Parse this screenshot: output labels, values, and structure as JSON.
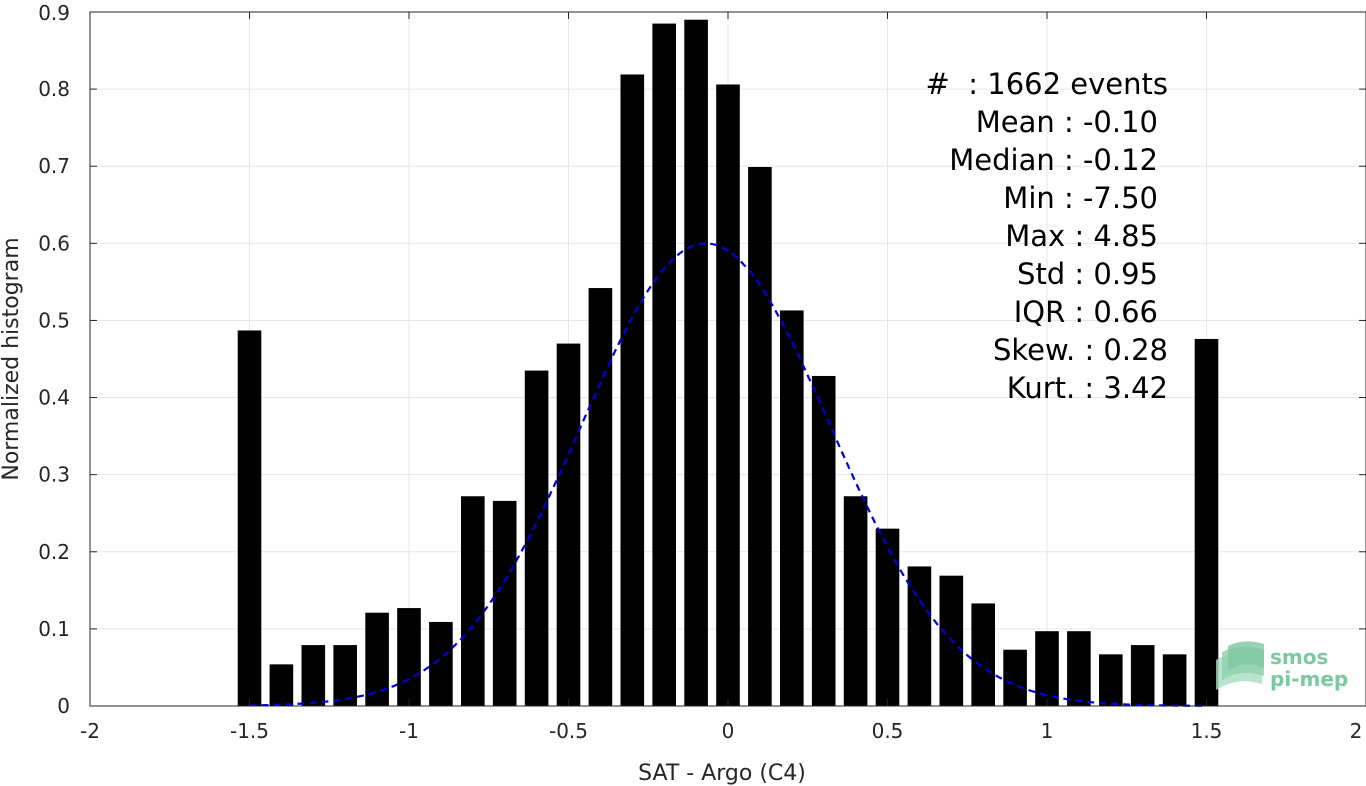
{
  "chart_data": {
    "type": "bar",
    "xlabel": "SAT - Argo (C4)",
    "ylabel": "Normalized histogram",
    "xlim": [
      -2,
      2
    ],
    "ylim": [
      0,
      0.9
    ],
    "x_ticks": [
      -2,
      -1.5,
      -1,
      -0.5,
      0,
      0.5,
      1,
      1.5,
      2
    ],
    "x_tick_labels": [
      "-2",
      "-1.5",
      "-1",
      "-0.5",
      "0",
      "0.5",
      "1",
      "1.5",
      "2"
    ],
    "y_ticks": [
      0,
      0.1,
      0.2,
      0.3,
      0.4,
      0.5,
      0.6,
      0.7,
      0.8,
      0.9
    ],
    "y_tick_labels": [
      "0",
      "0.1",
      "0.2",
      "0.3",
      "0.4",
      "0.5",
      "0.6",
      "0.7",
      "0.8",
      "0.9"
    ],
    "grid": true,
    "bar_color": "#000000",
    "bin_centers": [
      -1.5,
      -1.4,
      -1.3,
      -1.2,
      -1.1,
      -1.0,
      -0.9,
      -0.8,
      -0.7,
      -0.6,
      -0.5,
      -0.4,
      -0.3,
      -0.2,
      -0.1,
      0.0,
      0.1,
      0.2,
      0.3,
      0.4,
      0.5,
      0.6,
      0.7,
      0.8,
      0.9,
      1.0,
      1.1,
      1.2,
      1.3,
      1.4,
      1.5
    ],
    "values": [
      0.487,
      0.054,
      0.079,
      0.079,
      0.121,
      0.127,
      0.109,
      0.272,
      0.266,
      0.435,
      0.47,
      0.542,
      0.819,
      0.885,
      0.89,
      0.806,
      0.699,
      0.513,
      0.428,
      0.272,
      0.23,
      0.181,
      0.169,
      0.133,
      0.073,
      0.097,
      0.097,
      0.067,
      0.079,
      0.067,
      0.476
    ],
    "fit_curve": {
      "style": "dashed",
      "color": "#0000dd",
      "mean": -0.07,
      "std": 0.39,
      "peak": 0.6,
      "x_range": [
        -1.5,
        1.5
      ]
    },
    "annotation_lines": [
      "#  : 1662 events",
      "Mean : -0.10",
      "Median : -0.12",
      "Min : -7.50",
      "Max : 4.85",
      "Std : 0.95",
      "IQR : 0.66",
      "Skew. : 0.28",
      "Kurt. : 3.42"
    ]
  },
  "logo": {
    "line1": "smos",
    "line2": "pi-mep",
    "color": "#7fc7a0"
  }
}
